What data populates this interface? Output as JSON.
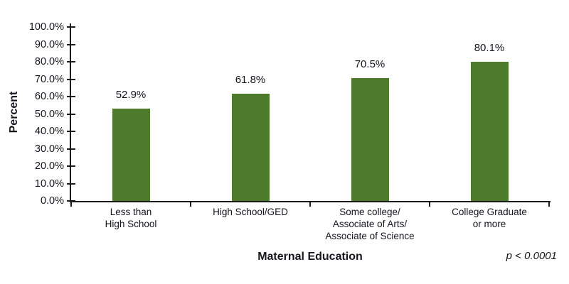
{
  "chart_data": {
    "type": "bar",
    "categories": [
      "Less than High School",
      "High School/GED",
      "Some college/Associate of Arts/Associate of Science",
      "College Graduate or more"
    ],
    "category_lines": [
      [
        "Less than",
        "High School"
      ],
      [
        "High School/GED"
      ],
      [
        "Some college/",
        "Associate of Arts/",
        "Associate of Science"
      ],
      [
        "College Graduate",
        "or more"
      ]
    ],
    "values": [
      52.9,
      61.8,
      70.5,
      80.1
    ],
    "data_labels": [
      "52.9%",
      "61.8%",
      "70.5%",
      "80.1%"
    ],
    "xlabel": "Maternal Education",
    "ylabel": "Percent",
    "ylim": [
      0,
      100
    ],
    "ytick_step": 10,
    "ytick_labels": [
      "0.0%",
      "10.0%",
      "20.0%",
      "30.0%",
      "40.0%",
      "50.0%",
      "60.0%",
      "70.0%",
      "80.0%",
      "90.0%",
      "100.0%"
    ],
    "annotation": "p < 0.0001",
    "bar_color": "#4e7a2c",
    "axis_color": "#1a1a1a",
    "text_color": "#17151e",
    "grid": false,
    "legend_position": "none"
  }
}
